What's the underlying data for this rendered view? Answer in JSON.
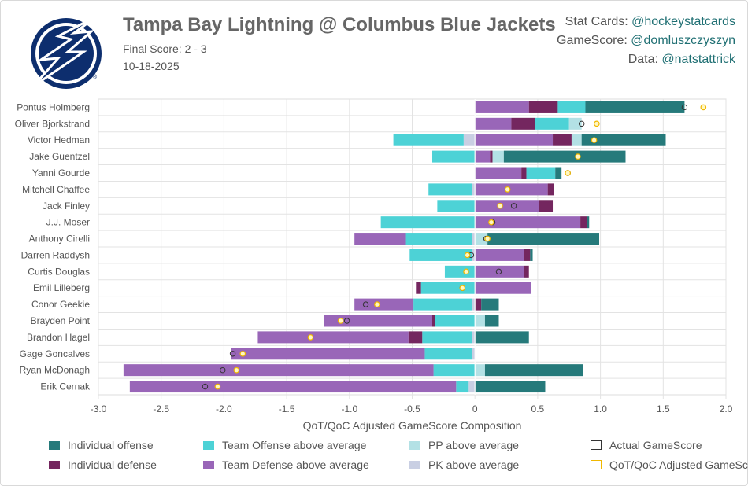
{
  "header": {
    "title": "Tampa Bay Lightning @ Columbus Blue Jackets",
    "final_score": "Final Score: 2 - 3",
    "date": "10-18-2025",
    "credits": [
      {
        "label": "Stat Cards:",
        "handle": "@hockeystatcards"
      },
      {
        "label": "GameScore:",
        "handle": "@domluszczyszyn"
      },
      {
        "label": "Data:",
        "handle": "@natstattrick"
      }
    ],
    "logo": "tampa-bay-lightning-logo"
  },
  "colors": {
    "individual_offense": "#267a7b",
    "team_offense": "#4dd2d6",
    "pp": "#b3e1e5",
    "individual_defense": "#74265f",
    "team_defense": "#9966b8",
    "pk": "#c9cfe3",
    "actual_marker": "#333333",
    "adjusted_marker": "#f0b800",
    "logo_blue": "#0d2e6e"
  },
  "chart_data": {
    "type": "bar",
    "orientation": "horizontal-stacked",
    "xlabel": "QoT/QoC Adjusted GameScore Composition",
    "xlim": [
      -3.0,
      2.0
    ],
    "xticks": [
      "-3.0",
      "-2.5",
      "-2.0",
      "-1.5",
      "-1.0",
      "-0.5",
      "0",
      "0.5",
      "1.0",
      "1.5",
      "2.0"
    ],
    "grid": true,
    "legend_position": "bottom",
    "stack_order_positive": [
      "team_defense",
      "individual_defense",
      "team_offense",
      "pp",
      "individual_offense"
    ],
    "stack_order_negative": [
      "pk",
      "team_offense",
      "individual_defense",
      "team_defense"
    ],
    "series_names": {
      "individual_offense": "Individual offense",
      "team_offense": "Team Offense above average",
      "pp": "PP above average",
      "actual": "Actual GameScore",
      "individual_defense": "Individual defense",
      "team_defense": "Team Defense above average",
      "pk": "PK above average",
      "adjusted": "QoT/QoC Adjusted GameScore"
    },
    "players": [
      {
        "name": "Pontus Holmberg",
        "team_defense": 0.43,
        "individual_defense": 0.23,
        "team_offense": 0.22,
        "individual_offense": 0.79,
        "actual": 1.67,
        "adjusted": 1.82
      },
      {
        "name": "Oliver Bjorkstrand",
        "team_defense": 0.29,
        "individual_defense": 0.19,
        "team_offense": 0.27,
        "pp": 0.1,
        "actual": 0.85,
        "adjusted": 0.97
      },
      {
        "name": "Victor Hedman",
        "team_offense": -0.56,
        "pk": -0.09,
        "team_defense": 0.62,
        "individual_defense": 0.15,
        "individual_offense": 0.67,
        "pp": 0.08,
        "actual": 0.95,
        "adjusted": 0.95
      },
      {
        "name": "Jake Guentzel",
        "team_offense": -0.34,
        "team_defense": 0.12,
        "individual_defense": 0.02,
        "individual_offense": 0.97,
        "pp": 0.09,
        "actual": 0.82,
        "adjusted": 0.82
      },
      {
        "name": "Yanni Gourde",
        "team_defense": 0.37,
        "individual_defense": 0.04,
        "team_offense": 0.23,
        "individual_offense": 0.05,
        "actual": 0.74,
        "adjusted": 0.74
      },
      {
        "name": "Mitchell Chaffee",
        "team_offense": -0.35,
        "pk": -0.02,
        "team_defense": 0.58,
        "individual_defense": 0.05,
        "actual": 0.26,
        "adjusted": 0.26
      },
      {
        "name": "Jack Finley",
        "team_offense": -0.3,
        "team_defense": 0.51,
        "individual_defense": 0.11,
        "actual": 0.31,
        "adjusted": 0.2
      },
      {
        "name": "J.J. Moser",
        "team_offense": -0.75,
        "team_defense": 0.84,
        "individual_defense": 0.05,
        "individual_offense": 0.02,
        "actual": 0.14,
        "adjusted": 0.13
      },
      {
        "name": "Anthony Cirelli",
        "team_offense": -0.53,
        "team_defense": -0.41,
        "pk": -0.02,
        "individual_offense": 0.89,
        "pp": 0.1,
        "actual": 0.09,
        "adjusted": 0.1
      },
      {
        "name": "Darren Raddysh",
        "team_offense": -0.5,
        "pk": -0.02,
        "team_defense": 0.39,
        "individual_defense": 0.05,
        "individual_offense": 0.02,
        "actual": -0.03,
        "adjusted": -0.06
      },
      {
        "name": "Curtis Douglas",
        "team_offense": -0.24,
        "team_defense": 0.39,
        "individual_defense": 0.04,
        "actual": 0.19,
        "adjusted": -0.07
      },
      {
        "name": "Emil Lilleberg",
        "team_offense": -0.43,
        "individual_defense": -0.04,
        "team_defense": 0.45,
        "actual": -0.1,
        "adjusted": -0.1
      },
      {
        "name": "Conor Geekie",
        "team_offense": -0.47,
        "team_defense": -0.47,
        "pk": -0.02,
        "individual_defense": 0.05,
        "individual_offense": 0.14,
        "actual": -0.87,
        "adjusted": -0.78
      },
      {
        "name": "Brayden Point",
        "team_offense": -0.32,
        "individual_defense": -0.02,
        "team_defense": -0.86,
        "individual_offense": 0.11,
        "pp": 0.08,
        "actual": -1.02,
        "adjusted": -1.07
      },
      {
        "name": "Brandon Hagel",
        "team_offense": -0.4,
        "individual_defense": -0.11,
        "team_defense": -1.2,
        "pk": -0.02,
        "individual_offense": 0.43,
        "actual": -1.31,
        "adjusted": -1.31
      },
      {
        "name": "Gage Goncalves",
        "team_offense": -0.38,
        "pk": -0.02,
        "team_defense": -1.54,
        "actual": -1.93,
        "adjusted": -1.85
      },
      {
        "name": "Ryan McDonagh",
        "team_offense": -0.33,
        "team_defense": -2.47,
        "pp": 0.08,
        "individual_offense": 0.78,
        "actual": -2.01,
        "adjusted": -1.9
      },
      {
        "name": "Erik Cernak",
        "team_offense": -0.1,
        "pk": -0.05,
        "team_defense": -2.6,
        "individual_offense": 0.56,
        "actual": -2.15,
        "adjusted": -2.05
      }
    ]
  },
  "legend": [
    {
      "key": "individual_offense",
      "label": "Individual offense",
      "kind": "fill"
    },
    {
      "key": "team_offense",
      "label": "Team Offense above average",
      "kind": "fill"
    },
    {
      "key": "pp",
      "label": "PP above average",
      "kind": "fill"
    },
    {
      "key": "actual",
      "label": "Actual GameScore",
      "kind": "outline"
    },
    {
      "key": "individual_defense",
      "label": "Individual defense",
      "kind": "fill"
    },
    {
      "key": "team_defense",
      "label": "Team Defense above average",
      "kind": "fill"
    },
    {
      "key": "pk",
      "label": "PK above average",
      "kind": "fill"
    },
    {
      "key": "adjusted",
      "label": "QoT/QoC Adjusted GameScore",
      "kind": "outline"
    }
  ]
}
